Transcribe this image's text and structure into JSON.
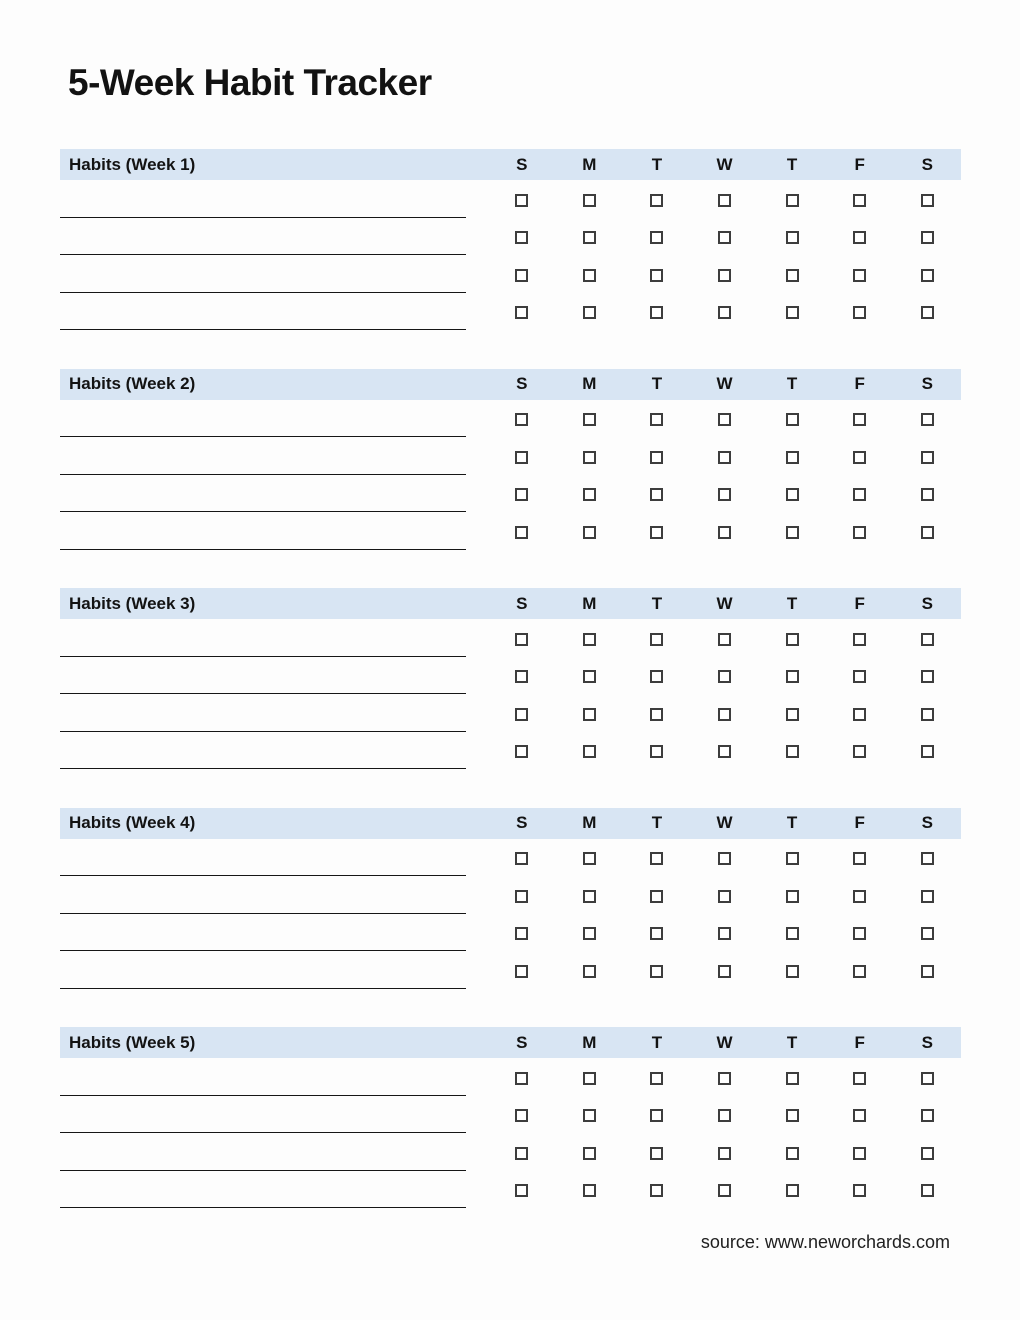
{
  "page": {
    "title": "5-Week Habit Tracker",
    "source": "source: www.neworchards.com"
  },
  "colors": {
    "header_bg": "#d8e5f3",
    "checkbox_border": "#3d3d3d",
    "line": "#161616"
  },
  "days": [
    "S",
    "M",
    "T",
    "W",
    "T",
    "F",
    "S"
  ],
  "weeks": [
    {
      "label": "Habits (Week 1)",
      "rows": [
        {
          "habit": "",
          "checked": [
            false,
            false,
            false,
            false,
            false,
            false,
            false
          ]
        },
        {
          "habit": "",
          "checked": [
            false,
            false,
            false,
            false,
            false,
            false,
            false
          ]
        },
        {
          "habit": "",
          "checked": [
            false,
            false,
            false,
            false,
            false,
            false,
            false
          ]
        },
        {
          "habit": "",
          "checked": [
            false,
            false,
            false,
            false,
            false,
            false,
            false
          ]
        }
      ]
    },
    {
      "label": "Habits (Week 2)",
      "rows": [
        {
          "habit": "",
          "checked": [
            false,
            false,
            false,
            false,
            false,
            false,
            false
          ]
        },
        {
          "habit": "",
          "checked": [
            false,
            false,
            false,
            false,
            false,
            false,
            false
          ]
        },
        {
          "habit": "",
          "checked": [
            false,
            false,
            false,
            false,
            false,
            false,
            false
          ]
        },
        {
          "habit": "",
          "checked": [
            false,
            false,
            false,
            false,
            false,
            false,
            false
          ]
        }
      ]
    },
    {
      "label": "Habits (Week 3)",
      "rows": [
        {
          "habit": "",
          "checked": [
            false,
            false,
            false,
            false,
            false,
            false,
            false
          ]
        },
        {
          "habit": "",
          "checked": [
            false,
            false,
            false,
            false,
            false,
            false,
            false
          ]
        },
        {
          "habit": "",
          "checked": [
            false,
            false,
            false,
            false,
            false,
            false,
            false
          ]
        },
        {
          "habit": "",
          "checked": [
            false,
            false,
            false,
            false,
            false,
            false,
            false
          ]
        }
      ]
    },
    {
      "label": "Habits (Week 4)",
      "rows": [
        {
          "habit": "",
          "checked": [
            false,
            false,
            false,
            false,
            false,
            false,
            false
          ]
        },
        {
          "habit": "",
          "checked": [
            false,
            false,
            false,
            false,
            false,
            false,
            false
          ]
        },
        {
          "habit": "",
          "checked": [
            false,
            false,
            false,
            false,
            false,
            false,
            false
          ]
        },
        {
          "habit": "",
          "checked": [
            false,
            false,
            false,
            false,
            false,
            false,
            false
          ]
        }
      ]
    },
    {
      "label": "Habits (Week 5)",
      "rows": [
        {
          "habit": "",
          "checked": [
            false,
            false,
            false,
            false,
            false,
            false,
            false
          ]
        },
        {
          "habit": "",
          "checked": [
            false,
            false,
            false,
            false,
            false,
            false,
            false
          ]
        },
        {
          "habit": "",
          "checked": [
            false,
            false,
            false,
            false,
            false,
            false,
            false
          ]
        },
        {
          "habit": "",
          "checked": [
            false,
            false,
            false,
            false,
            false,
            false,
            false
          ]
        }
      ]
    }
  ]
}
